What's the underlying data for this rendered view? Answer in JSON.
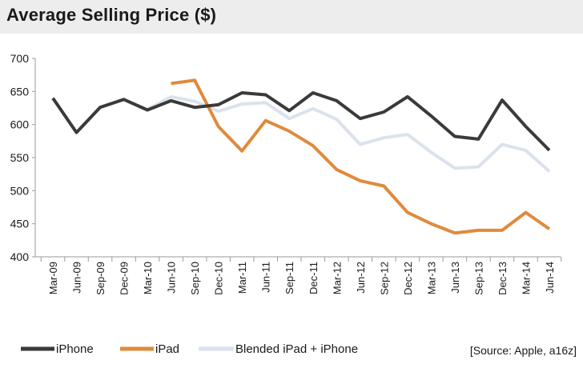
{
  "title": "Average Selling Price ($)",
  "source": "[Source: Apple, a16z]",
  "chart_data": {
    "type": "line",
    "title": "Average Selling Price ($)",
    "xlabel": "",
    "ylabel": "",
    "ylim": [
      400,
      700
    ],
    "yticks": [
      400,
      450,
      500,
      550,
      600,
      650,
      700
    ],
    "grid": false,
    "legend_position": "bottom",
    "categories": [
      "Mar-09",
      "Jun-09",
      "Sep-09",
      "Dec-09",
      "Mar-10",
      "Jun-10",
      "Sep-10",
      "Dec-10",
      "Mar-11",
      "Jun-11",
      "Sep-11",
      "Dec-11",
      "Mar-12",
      "Jun-12",
      "Sep-12",
      "Dec-12",
      "Mar-13",
      "Jun-13",
      "Sep-13",
      "Dec-13",
      "Mar-14",
      "Jun-14"
    ],
    "series": [
      {
        "name": "iPhone",
        "color": "#3a3a3a",
        "values": [
          640,
          588,
          626,
          638,
          622,
          636,
          626,
          630,
          648,
          645,
          621,
          648,
          636,
          609,
          619,
          642,
          613,
          582,
          578,
          637,
          597,
          561
        ]
      },
      {
        "name": "iPad",
        "color": "#e08a3c",
        "values": [
          null,
          null,
          null,
          null,
          null,
          662,
          667,
          597,
          560,
          606,
          590,
          568,
          532,
          515,
          507,
          467,
          450,
          436,
          440,
          440,
          467,
          442
        ]
      },
      {
        "name": "Blended iPad + iPhone",
        "color": "#dbe2ed",
        "values": [
          null,
          null,
          null,
          null,
          623,
          642,
          635,
          620,
          631,
          633,
          609,
          624,
          608,
          570,
          580,
          585,
          558,
          534,
          536,
          570,
          561,
          529
        ]
      }
    ]
  }
}
